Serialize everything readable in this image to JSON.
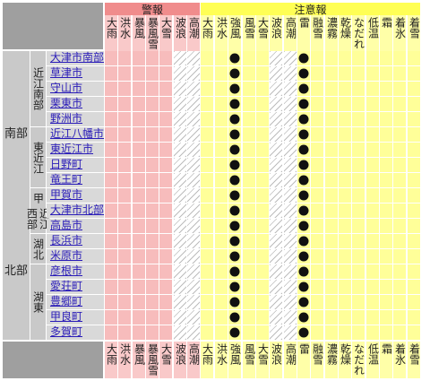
{
  "headers": {
    "warning": "警報",
    "advisory": "注意報",
    "warning_color": "#f08c8c",
    "advisory_color": "#ffff55"
  },
  "columns": [
    {
      "id": "w1",
      "label": "大雨",
      "group": "warning",
      "hatched": false
    },
    {
      "id": "w2",
      "label": "洪水",
      "group": "warning",
      "hatched": false
    },
    {
      "id": "w3",
      "label": "暴風",
      "group": "warning",
      "hatched": false
    },
    {
      "id": "w4",
      "label": "暴風雪",
      "group": "warning",
      "hatched": false
    },
    {
      "id": "w5",
      "label": "大雪",
      "group": "warning",
      "hatched": false
    },
    {
      "id": "w6",
      "label": "波浪",
      "group": "warning",
      "hatched": true
    },
    {
      "id": "w7",
      "label": "高潮",
      "group": "warning",
      "hatched": true
    },
    {
      "id": "a1",
      "label": "大雨",
      "group": "advisory",
      "hatched": false
    },
    {
      "id": "a2",
      "label": "洪水",
      "group": "advisory",
      "hatched": false
    },
    {
      "id": "a3",
      "label": "強風",
      "group": "advisory",
      "hatched": false
    },
    {
      "id": "a4",
      "label": "風雪",
      "group": "advisory",
      "hatched": false
    },
    {
      "id": "a5",
      "label": "大雪",
      "group": "advisory",
      "hatched": false
    },
    {
      "id": "a6",
      "label": "波浪",
      "group": "advisory",
      "hatched": true
    },
    {
      "id": "a7",
      "label": "高潮",
      "group": "advisory",
      "hatched": true
    },
    {
      "id": "a8",
      "label": "雷",
      "group": "advisory",
      "hatched": false
    },
    {
      "id": "a9",
      "label": "融雪",
      "group": "advisory",
      "hatched": false
    },
    {
      "id": "a10",
      "label": "濃霧",
      "group": "advisory",
      "hatched": false
    },
    {
      "id": "a11",
      "label": "乾燥",
      "group": "advisory",
      "hatched": false
    },
    {
      "id": "a12",
      "label": "なだれ",
      "group": "advisory",
      "hatched": false
    },
    {
      "id": "a13",
      "label": "低温",
      "group": "advisory",
      "hatched": false
    },
    {
      "id": "a14",
      "label": "霜",
      "group": "advisory",
      "hatched": false
    },
    {
      "id": "a15",
      "label": "着氷",
      "group": "advisory",
      "hatched": false
    },
    {
      "id": "a16",
      "label": "着雪",
      "group": "advisory",
      "hatched": false
    }
  ],
  "active_columns": [
    "a3",
    "a8"
  ],
  "regions": [
    {
      "label": "南部",
      "subregions": [
        {
          "label": "近江南部",
          "cities": [
            "大津市南部",
            "草津市",
            "守山市",
            "栗東市",
            "野洲市"
          ]
        },
        {
          "label": "東近江",
          "cities": [
            "近江八幡市",
            "東近江市",
            "日野町",
            "竜王町"
          ]
        },
        {
          "label": "甲賀",
          "cities": [
            "甲賀市",
            "湖南市"
          ]
        }
      ]
    },
    {
      "label": "北部",
      "subregions": [
        {
          "label": "近江西部",
          "cities": [
            "大津市北部",
            "高島市"
          ]
        },
        {
          "label": "湖北",
          "cities": [
            "長浜市",
            "米原市"
          ]
        },
        {
          "label": "湖東",
          "cities": [
            "彦根市",
            "愛荘町",
            "豊郷町",
            "甲良町",
            "多賀町"
          ]
        }
      ]
    }
  ],
  "icons": {
    "active_marker": "filled-circle"
  }
}
